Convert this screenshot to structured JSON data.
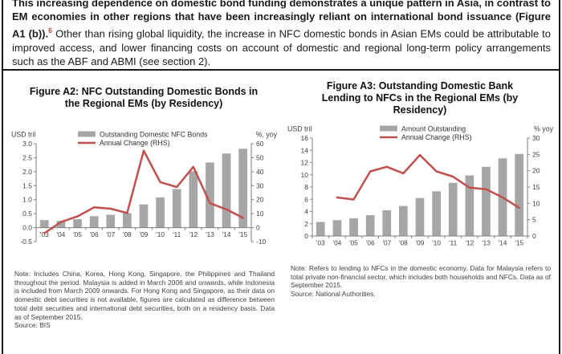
{
  "paragraph": {
    "bold_text": "This increasing dependence on domestic bond funding demonstrates a unique pattern in Asia, in contrast to EM economies in other regions that have been increasingly reliant on international bond issuance (Figure A1 (b)).",
    "footnote_marker": "6",
    "regular_text": " Other than rising global liquidity, the increase in NFC domestic bonds in Asian EMs could be attributable to improved access, and lower financing costs on account of domestic and regional long-term policy arrangements such as the ABF and ABMI (see section 2).",
    "footnote_color": "#c0504d"
  },
  "chart_data": [
    {
      "id": "figure-a2",
      "type": "bar",
      "title": "Figure A2: NFC Outstanding Domestic Bonds in the Regional EMs (by Residency)",
      "categories": [
        "'03",
        "'04",
        "'05",
        "'06",
        "'07",
        "'08",
        "'09",
        "'10",
        "'11",
        "'12",
        "'13",
        "'14",
        "'15"
      ],
      "series": [
        {
          "name": "Outstanding Domestic NFC Bonds",
          "type": "bar",
          "axis": "left",
          "color": "#a6a6a6",
          "values": [
            0.27,
            0.24,
            0.3,
            0.41,
            0.46,
            0.52,
            0.83,
            1.08,
            1.38,
            2.02,
            2.33,
            2.65,
            2.82
          ]
        },
        {
          "name": "Annual Change (RHS)",
          "type": "line",
          "axis": "right",
          "color": "#c0504d",
          "values": [
            -4,
            4,
            8,
            14.5,
            13.5,
            10.5,
            55,
            32.5,
            29,
            43.5,
            17.5,
            13,
            7
          ]
        }
      ],
      "left_axis": {
        "label": "USD tril",
        "min": -0.5,
        "max": 3.0,
        "step": 0.5,
        "decimals": 1
      },
      "right_axis": {
        "label": "%, yoy",
        "min": -10,
        "max": 60,
        "step": 10,
        "decimals": 0
      },
      "grid": false,
      "legend_position": "top-inside",
      "legend_x": 86,
      "note": "Note: Includes China, Korea, Hong Kong, Singapore, the Philippines and Thailand throughout the period. Malaysia is added in March 2006 and onwards, while Indonesia is included from March 2009 onwards. For Hong Kong and Singapore, as their data on domestic debt securities is not available, figures are calculated as difference between total debt securities and international debt securities, both on a residency basis. Data as of September 2015.",
      "source": "Source: BIS"
    },
    {
      "id": "figure-a3",
      "type": "bar",
      "title": "Figure A3: Outstanding Domestic Bank Lending to NFCs in the Regional EMs (by Residency)",
      "categories": [
        "'03",
        "'04",
        "'05",
        "'06",
        "'07",
        "'08",
        "'09",
        "'10",
        "'11",
        "'12",
        "'13",
        "'14",
        "'15"
      ],
      "series": [
        {
          "name": "Amount Outstanding",
          "type": "bar",
          "axis": "left",
          "color": "#a6a6a6",
          "values": [
            2.3,
            2.6,
            2.9,
            3.4,
            4.2,
            4.9,
            6.2,
            7.3,
            8.7,
            9.9,
            11.3,
            12.7,
            13.4
          ]
        },
        {
          "name": "Annual Change (RHS)",
          "type": "line",
          "axis": "right",
          "color": "#c0504d",
          "values": [
            null,
            11.8,
            11.2,
            19.8,
            21.2,
            19.2,
            24.8,
            19.8,
            18.2,
            14.8,
            14.3,
            11.8,
            8.6
          ]
        }
      ],
      "left_axis": {
        "label": "USD tril",
        "min": 0,
        "max": 16,
        "step": 2,
        "decimals": 0
      },
      "right_axis": {
        "label": "% yoy",
        "min": 0,
        "max": 30,
        "step": 5,
        "decimals": 0
      },
      "grid": false,
      "legend_position": "top-inside",
      "legend_x": 118,
      "note": "Note: Refers to lending to NFCs in the domestic economy. Data for Malaysia refers to total private non-financial sector, which includes both households and NFCs. Data as of September 2015.",
      "source": "Source: National Authorities."
    }
  ],
  "colors": {
    "bar": "#a6a6a6",
    "line": "#c0504d",
    "axis": "#7f7f7f",
    "tick_text": "#404040"
  }
}
